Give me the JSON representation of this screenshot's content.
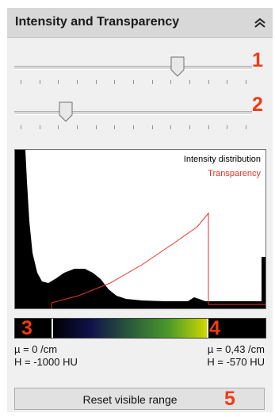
{
  "panel": {
    "title": "Intensity and Transparency",
    "collapse_icon": "double-chevron-up-icon"
  },
  "sliders": [
    {
      "name": "slider-1",
      "value": 0.7,
      "tick_count": 13
    },
    {
      "name": "slider-2",
      "value": 0.2,
      "tick_count": 13
    }
  ],
  "markers": [
    "1",
    "2",
    "3",
    "4",
    "5"
  ],
  "histogram": {
    "legend_intensity": "Intensity distribution",
    "legend_transparency": "Transparency",
    "intensity_color": "#000000",
    "transparency_color": "#e8322a"
  },
  "colorbar": {
    "stops": [
      "#000000",
      "#10124a",
      "#2a5a3a",
      "#4a9a2a",
      "#d4d800"
    ],
    "range_start_fraction": 0.15,
    "range_end_fraction": 0.77
  },
  "range_info": {
    "low_mu": "µ = 0 /cm",
    "low_h": "H = -1000 HU",
    "high_mu": "µ = 0,43 /cm",
    "high_h": "H = -570 HU"
  },
  "reset_button": {
    "label": "Reset visible range"
  }
}
